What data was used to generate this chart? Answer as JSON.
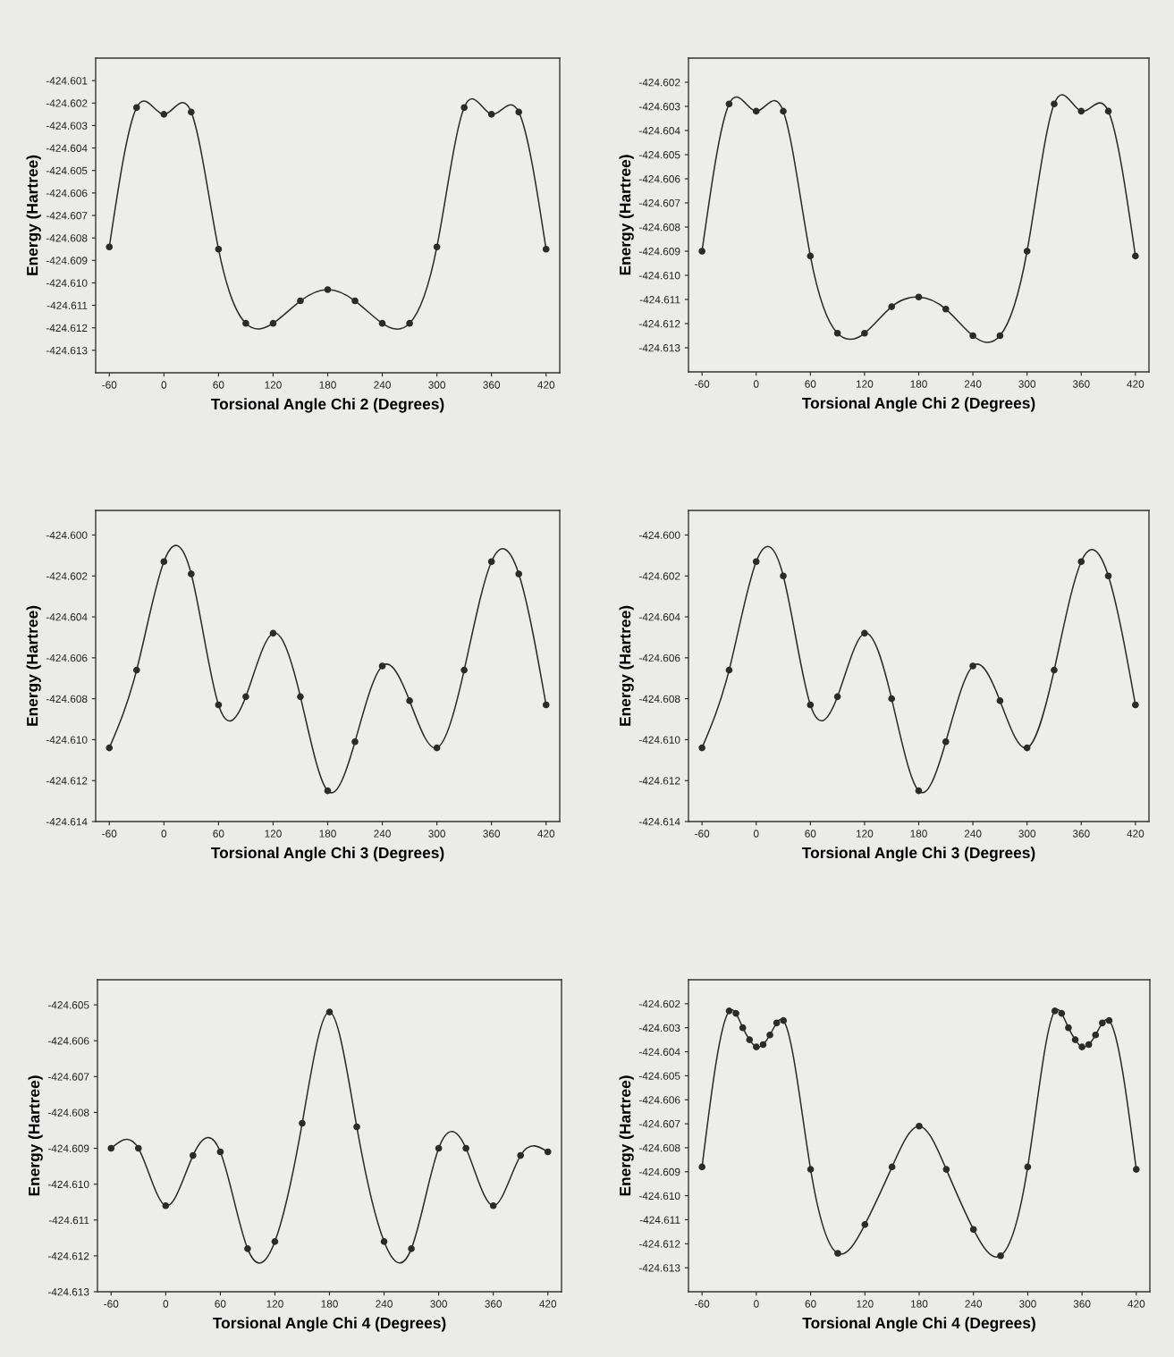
{
  "chart_data": [
    {
      "type": "line",
      "xlabel": "Torsional Angle Chi 2 (Degrees)",
      "ylabel": "Energy (Hartree)",
      "xlim": [
        -75,
        435
      ],
      "xticks": [
        -60,
        0,
        60,
        120,
        180,
        240,
        300,
        360,
        420
      ],
      "ylim": [
        -424.614,
        -424.6
      ],
      "yticks": [
        {
          "value": -424.601,
          "label": "-424.601"
        },
        {
          "value": -424.602,
          "label": "-424.602"
        },
        {
          "value": -424.603,
          "label": "-424.603"
        },
        {
          "value": -424.604,
          "label": "-424.604"
        },
        {
          "value": -424.605,
          "label": "-424.605"
        },
        {
          "value": -424.606,
          "label": "-424.606"
        },
        {
          "value": -424.607,
          "label": "-424.607"
        },
        {
          "value": -424.608,
          "label": "-424.608"
        },
        {
          "value": -424.609,
          "label": "-424.609"
        },
        {
          "value": -424.61,
          "label": "-424.610"
        },
        {
          "value": -424.611,
          "label": "-424.611"
        },
        {
          "value": -424.612,
          "label": "-424.612"
        },
        {
          "value": -424.613,
          "label": "-424.613"
        }
      ],
      "marker": "circle",
      "line_style": "solid",
      "grid": false,
      "legend": false,
      "x": [
        -60,
        -30,
        0,
        30,
        60,
        90,
        120,
        150,
        180,
        210,
        240,
        270,
        300,
        330,
        360,
        390,
        420
      ],
      "series": [
        {
          "color": "#2b2b2b",
          "values": [
            -424.6084,
            -424.6022,
            -424.6025,
            -424.6024,
            -424.6085,
            -424.6118,
            -424.6118,
            -424.6108,
            -424.6103,
            -424.6108,
            -424.6118,
            -424.6118,
            -424.6084,
            -424.6022,
            -424.6025,
            -424.6024,
            -424.6085
          ]
        }
      ]
    },
    {
      "type": "line",
      "xlabel": "Torsional Angle Chi 2 (Degrees)",
      "ylabel": "Energy (Hartree)",
      "xlim": [
        -75,
        435
      ],
      "xticks": [
        -60,
        0,
        60,
        120,
        180,
        240,
        300,
        360,
        420
      ],
      "ylim": [
        -424.614,
        -424.601
      ],
      "yticks": [
        {
          "value": -424.602,
          "label": "-424.602"
        },
        {
          "value": -424.603,
          "label": "-424.603"
        },
        {
          "value": -424.604,
          "label": "-424.604"
        },
        {
          "value": -424.605,
          "label": "-424.605"
        },
        {
          "value": -424.606,
          "label": "-424.606"
        },
        {
          "value": -424.607,
          "label": "-424.607"
        },
        {
          "value": -424.608,
          "label": "-424.608"
        },
        {
          "value": -424.609,
          "label": "-424.609"
        },
        {
          "value": -424.61,
          "label": "-424.610"
        },
        {
          "value": -424.611,
          "label": "-424.611"
        },
        {
          "value": -424.612,
          "label": "-424.612"
        },
        {
          "value": -424.613,
          "label": "-424.613"
        }
      ],
      "marker": "circle",
      "line_style": "solid",
      "grid": false,
      "legend": false,
      "x": [
        -60,
        -30,
        0,
        30,
        60,
        90,
        120,
        150,
        180,
        210,
        240,
        270,
        300,
        330,
        360,
        390,
        420
      ],
      "series": [
        {
          "color": "#2b2b2b",
          "values": [
            -424.609,
            -424.6029,
            -424.6032,
            -424.6032,
            -424.6092,
            -424.6124,
            -424.6124,
            -424.6113,
            -424.6109,
            -424.6114,
            -424.6125,
            -424.6125,
            -424.609,
            -424.6029,
            -424.6032,
            -424.6032,
            -424.6092
          ]
        }
      ]
    },
    {
      "type": "line",
      "xlabel": "Torsional Angle Chi 3 (Degrees)",
      "ylabel": "Energy (Hartree)",
      "xlim": [
        -75,
        435
      ],
      "xticks": [
        -60,
        0,
        60,
        120,
        180,
        240,
        300,
        360,
        420
      ],
      "ylim": [
        -424.614,
        -424.5988
      ],
      "yticks": [
        {
          "value": -424.6,
          "label": "-424.600"
        },
        {
          "value": -424.602,
          "label": "-424.602"
        },
        {
          "value": -424.604,
          "label": "-424.604"
        },
        {
          "value": -424.606,
          "label": "-424.606"
        },
        {
          "value": -424.608,
          "label": "-424.608"
        },
        {
          "value": -424.61,
          "label": "-424.610"
        },
        {
          "value": -424.612,
          "label": "-424.612"
        },
        {
          "value": -424.614,
          "label": "-424.614"
        }
      ],
      "marker": "circle",
      "line_style": "solid",
      "grid": false,
      "legend": false,
      "x": [
        -60,
        -30,
        0,
        30,
        60,
        90,
        120,
        150,
        180,
        210,
        240,
        270,
        300,
        330,
        360,
        390,
        420
      ],
      "series": [
        {
          "color": "#2b2b2b",
          "values": [
            -424.6104,
            -424.6066,
            -424.6013,
            -424.6019,
            -424.6083,
            -424.6079,
            -424.6048,
            -424.6079,
            -424.6125,
            -424.6101,
            -424.6064,
            -424.6081,
            -424.6104,
            -424.6066,
            -424.6013,
            -424.6019,
            -424.6083
          ]
        }
      ]
    },
    {
      "type": "line",
      "xlabel": "Torsional Angle Chi 3 (Degrees)",
      "ylabel": "Energy (Hartree)",
      "xlim": [
        -75,
        435
      ],
      "xticks": [
        -60,
        0,
        60,
        120,
        180,
        240,
        300,
        360,
        420
      ],
      "ylim": [
        -424.614,
        -424.5988
      ],
      "yticks": [
        {
          "value": -424.6,
          "label": "-424.600"
        },
        {
          "value": -424.602,
          "label": "-424.602"
        },
        {
          "value": -424.604,
          "label": "-424.604"
        },
        {
          "value": -424.606,
          "label": "-424.606"
        },
        {
          "value": -424.608,
          "label": "-424.608"
        },
        {
          "value": -424.61,
          "label": "-424.610"
        },
        {
          "value": -424.612,
          "label": "-424.612"
        },
        {
          "value": -424.614,
          "label": "-424.614"
        }
      ],
      "marker": "circle",
      "line_style": "solid",
      "grid": false,
      "legend": false,
      "x": [
        -60,
        -30,
        0,
        30,
        60,
        90,
        120,
        150,
        180,
        210,
        240,
        270,
        300,
        330,
        360,
        390,
        420
      ],
      "series": [
        {
          "color": "#2b2b2b",
          "values": [
            -424.6104,
            -424.6066,
            -424.6013,
            -424.602,
            -424.6083,
            -424.6079,
            -424.6048,
            -424.608,
            -424.6125,
            -424.6101,
            -424.6064,
            -424.6081,
            -424.6104,
            -424.6066,
            -424.6013,
            -424.602,
            -424.6083
          ]
        }
      ]
    },
    {
      "type": "line",
      "xlabel": "Torsional Angle Chi 4 (Degrees)",
      "ylabel": "Energy (Hartree)",
      "xlim": [
        -75,
        435
      ],
      "xticks": [
        -60,
        0,
        60,
        120,
        180,
        240,
        300,
        360,
        420
      ],
      "ylim": [
        -424.613,
        -424.6043
      ],
      "yticks": [
        {
          "value": -424.605,
          "label": "-424.605"
        },
        {
          "value": -424.606,
          "label": "-424.606"
        },
        {
          "value": -424.607,
          "label": "-424.607"
        },
        {
          "value": -424.608,
          "label": "-424.608"
        },
        {
          "value": -424.609,
          "label": "-424.609"
        },
        {
          "value": -424.61,
          "label": "-424.610"
        },
        {
          "value": -424.611,
          "label": "-424.611"
        },
        {
          "value": -424.612,
          "label": "-424.612"
        },
        {
          "value": -424.613,
          "label": "-424.613"
        }
      ],
      "marker": "circle",
      "line_style": "solid",
      "grid": false,
      "legend": false,
      "x": [
        -60,
        -30,
        0,
        30,
        60,
        90,
        120,
        150,
        180,
        210,
        240,
        270,
        300,
        330,
        360,
        390,
        420
      ],
      "series": [
        {
          "color": "#2b2b2b",
          "values": [
            -424.609,
            -424.609,
            -424.6106,
            -424.6092,
            -424.6091,
            -424.6118,
            -424.6116,
            -424.6083,
            -424.6052,
            -424.6084,
            -424.6116,
            -424.6118,
            -424.609,
            -424.609,
            -424.6106,
            -424.6092,
            -424.6091
          ]
        }
      ]
    },
    {
      "type": "line",
      "xlabel": "Torsional Angle Chi 4 (Degrees)",
      "ylabel": "Energy (Hartree)",
      "xlim": [
        -75,
        435
      ],
      "xticks": [
        -60,
        0,
        60,
        120,
        180,
        240,
        300,
        360,
        420
      ],
      "ylim": [
        -424.614,
        -424.601
      ],
      "yticks": [
        {
          "value": -424.602,
          "label": "-424.602"
        },
        {
          "value": -424.603,
          "label": "-424.603"
        },
        {
          "value": -424.604,
          "label": "-424.604"
        },
        {
          "value": -424.605,
          "label": "-424.605"
        },
        {
          "value": -424.606,
          "label": "-424.606"
        },
        {
          "value": -424.607,
          "label": "-424.607"
        },
        {
          "value": -424.608,
          "label": "-424.608"
        },
        {
          "value": -424.609,
          "label": "-424.609"
        },
        {
          "value": -424.61,
          "label": "-424.610"
        },
        {
          "value": -424.611,
          "label": "-424.611"
        },
        {
          "value": -424.612,
          "label": "-424.612"
        },
        {
          "value": -424.613,
          "label": "-424.613"
        }
      ],
      "marker": "circle",
      "line_style": "solid",
      "grid": false,
      "legend": false,
      "x": [
        -60,
        -30,
        -22.5,
        -15,
        -7.5,
        0,
        7.5,
        15,
        22.5,
        30,
        60,
        90,
        120,
        150,
        180,
        210,
        240,
        270,
        300,
        330,
        337.5,
        345,
        352.5,
        360,
        367.5,
        375,
        382.5,
        390,
        420
      ],
      "series": [
        {
          "color": "#2b2b2b",
          "values": [
            -424.6088,
            -424.6023,
            -424.6024,
            -424.603,
            -424.6035,
            -424.6038,
            -424.6037,
            -424.6033,
            -424.6028,
            -424.6027,
            -424.6089,
            -424.6124,
            -424.6112,
            -424.6088,
            -424.6071,
            -424.6089,
            -424.6114,
            -424.6125,
            -424.6088,
            -424.6023,
            -424.6024,
            -424.603,
            -424.6035,
            -424.6038,
            -424.6037,
            -424.6033,
            -424.6028,
            -424.6027,
            -424.6089
          ]
        }
      ]
    }
  ]
}
